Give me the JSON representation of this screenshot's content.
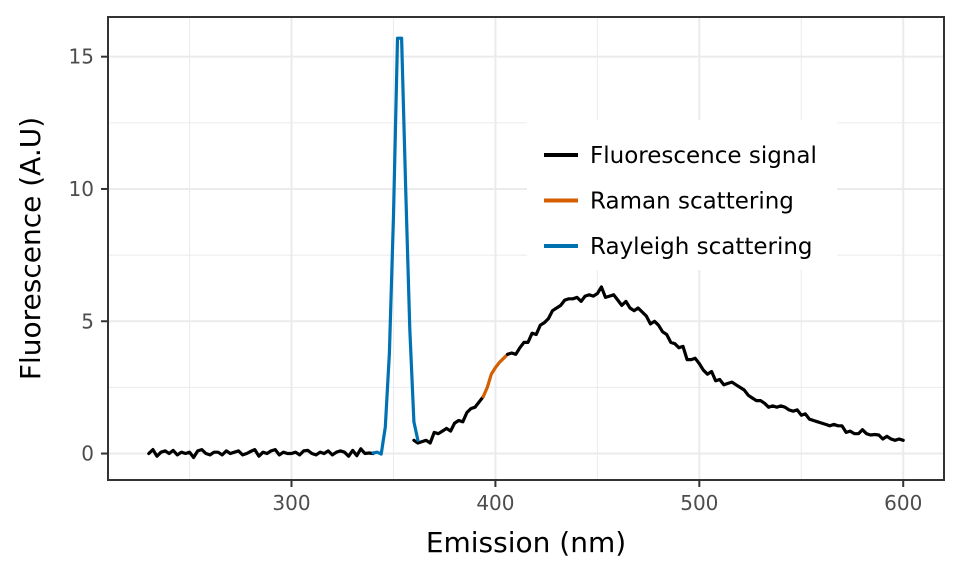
{
  "chart_data": {
    "type": "line",
    "xlabel": "Emission (nm)",
    "ylabel": "Fluorescence (A.U)",
    "xlim": [
      210,
      620
    ],
    "ylim": [
      -1,
      16.5
    ],
    "x_ticks": [
      300,
      400,
      500,
      600
    ],
    "y_ticks": [
      0,
      5,
      10,
      15
    ],
    "x_tick_labels": [
      "300",
      "400",
      "500",
      "600"
    ],
    "y_tick_labels": [
      "0",
      "5",
      "10",
      "15"
    ],
    "grid": true,
    "legend_position": "top-right",
    "series": [
      {
        "name": "Fluorescence signal",
        "color": "#000000",
        "x": [
          230,
          232,
          234,
          236,
          238,
          240,
          242,
          244,
          246,
          248,
          250,
          252,
          254,
          256,
          258,
          260,
          262,
          264,
          266,
          268,
          270,
          272,
          274,
          276,
          278,
          280,
          282,
          284,
          286,
          288,
          290,
          292,
          294,
          296,
          298,
          300,
          302,
          304,
          306,
          308,
          310,
          312,
          314,
          316,
          318,
          320,
          322,
          324,
          326,
          328,
          330,
          332,
          334,
          336,
          338,
          340
        ],
        "y": [
          0.0,
          0.15,
          -0.1,
          0.05,
          0.1,
          0.0,
          0.12,
          -0.05,
          0.05,
          0.0,
          0.05,
          -0.15,
          0.1,
          0.15,
          0.0,
          -0.05,
          0.05,
          0.05,
          -0.05,
          0.1,
          0.0,
          0.05,
          0.1,
          -0.05,
          0.0,
          0.08,
          0.15,
          -0.1,
          0.05,
          0.0,
          0.1,
          0.15,
          -0.05,
          0.05,
          0.0,
          0.0,
          0.05,
          -0.05,
          0.1,
          0.12,
          0.0,
          -0.05,
          0.05,
          0.0,
          0.1,
          -0.05,
          0.05,
          0.1,
          0.05,
          -0.1,
          0.12,
          -0.08,
          0.18,
          0.0,
          0.02,
          0.0
        ]
      },
      {
        "name": "Fluorescence signal",
        "color": "#000000",
        "x": [
          360,
          362,
          364,
          366,
          368,
          370,
          372,
          374,
          376,
          378,
          380,
          382,
          384,
          386,
          388,
          390,
          392,
          394
        ],
        "y": [
          0.5,
          0.4,
          0.45,
          0.5,
          0.4,
          0.8,
          0.75,
          0.85,
          0.95,
          0.85,
          1.15,
          1.25,
          1.2,
          1.55,
          1.7,
          1.75,
          1.95,
          2.15
        ]
      },
      {
        "name": "Raman scattering",
        "color": "#d55e00",
        "x": [
          394,
          396,
          398,
          400,
          402,
          404,
          406
        ],
        "y": [
          2.15,
          2.5,
          3.0,
          3.25,
          3.45,
          3.6,
          3.75
        ]
      },
      {
        "name": "Fluorescence signal",
        "color": "#000000",
        "x": [
          406,
          408,
          410,
          412,
          414,
          416,
          418,
          420,
          422,
          424,
          426,
          428,
          430,
          432,
          434,
          436,
          438,
          440,
          442,
          444,
          446,
          448,
          450,
          452,
          454,
          456,
          458,
          460,
          462,
          464,
          466,
          468,
          470,
          472,
          474,
          476,
          478,
          480,
          482,
          484,
          486,
          488,
          490,
          492,
          494,
          496,
          498,
          500,
          502,
          504,
          506,
          508,
          510,
          512,
          514,
          516,
          518,
          520,
          522,
          524,
          526,
          528,
          530,
          532,
          534,
          536,
          538,
          540,
          542,
          544,
          546,
          548,
          550,
          552,
          554,
          556,
          558,
          560,
          562,
          564,
          566,
          568,
          570,
          572,
          574,
          576,
          578,
          580,
          582,
          584,
          586,
          588,
          590,
          592,
          594,
          596,
          598,
          600
        ],
        "y": [
          3.75,
          3.8,
          3.75,
          4.0,
          4.2,
          4.2,
          4.55,
          4.5,
          4.85,
          4.95,
          5.1,
          5.4,
          5.5,
          5.6,
          5.8,
          5.85,
          5.85,
          5.9,
          5.75,
          5.95,
          6.0,
          5.95,
          6.05,
          6.3,
          5.9,
          5.95,
          6.0,
          5.8,
          5.6,
          5.75,
          5.5,
          5.4,
          5.5,
          5.35,
          5.2,
          4.9,
          5.0,
          4.85,
          4.6,
          4.5,
          4.2,
          4.15,
          4.0,
          4.05,
          3.55,
          3.55,
          3.6,
          3.4,
          3.15,
          3.0,
          3.1,
          2.75,
          2.8,
          2.6,
          2.65,
          2.7,
          2.6,
          2.5,
          2.4,
          2.2,
          2.1,
          2.0,
          2.0,
          1.9,
          1.75,
          1.8,
          1.75,
          1.8,
          1.75,
          1.65,
          1.6,
          1.65,
          1.45,
          1.5,
          1.3,
          1.25,
          1.2,
          1.15,
          1.1,
          1.05,
          1.1,
          1.05,
          1.05,
          0.8,
          0.85,
          0.75,
          0.75,
          0.9,
          0.75,
          0.7,
          0.72,
          0.7,
          0.55,
          0.65,
          0.55,
          0.5,
          0.55,
          0.5
        ]
      },
      {
        "name": "Rayleigh scattering",
        "color": "#0072b2",
        "x": [
          340,
          342,
          344,
          346,
          348,
          350,
          352,
          354,
          356,
          358,
          360,
          362
        ],
        "y": [
          0.02,
          0.05,
          -0.02,
          1.0,
          3.8,
          9.0,
          15.7,
          15.7,
          10.0,
          4.7,
          1.2,
          0.5
        ]
      }
    ],
    "legend": [
      {
        "label": "Fluorescence signal",
        "color": "#000000"
      },
      {
        "label": "Raman scattering",
        "color": "#d55e00"
      },
      {
        "label": "Rayleigh scattering",
        "color": "#0072b2"
      }
    ]
  }
}
